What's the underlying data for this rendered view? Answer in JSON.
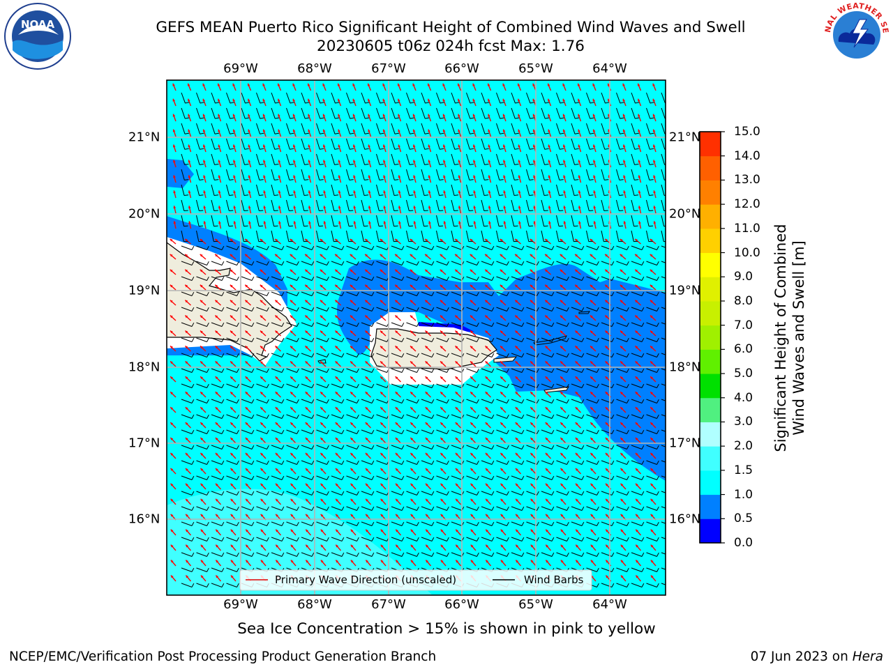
{
  "header": {
    "title_line1": "GEFS MEAN Puerto Rico Significant Height of Combined Wind Waves and Swell",
    "title_line2": "20230605 t06z 024h fcst   Max: 1.76"
  },
  "logos": {
    "noaa": {
      "icon": "noaa-logo-icon",
      "text": "NOAA"
    },
    "nws": {
      "icon": "nws-logo-icon",
      "text": "NATIONAL WEATHER SERVICE"
    }
  },
  "map": {
    "lon_labels": [
      "69°W",
      "68°W",
      "67°W",
      "66°W",
      "65°W",
      "64°W"
    ],
    "lat_labels": [
      "21°N",
      "20°N",
      "19°N",
      "18°N",
      "17°N",
      "16°N"
    ],
    "colors": {
      "ocean_base": "#00ffff",
      "band_0_5_1_0": "#0080ff",
      "band_0_0_0_5": "#0000ff",
      "band_1_5_2_0": "#40ffff",
      "land": "#efeddd",
      "wave_arrow": "#ff0000",
      "wind_barb": "#000000"
    }
  },
  "legend": {
    "primary_wave": "Primary Wave Direction (unscaled)",
    "wind_barbs": "Wind Barbs"
  },
  "colorbar": {
    "title_line1": "Significant Height of Combined",
    "title_line2": "Wind Waves and Swell [m]",
    "ticks": [
      "0.0",
      "0.5",
      "1.0",
      "1.5",
      "2.0",
      "3.0",
      "4.0",
      "5.0",
      "6.0",
      "7.0",
      "8.0",
      "9.0",
      "10.0",
      "11.0",
      "12.0",
      "13.0",
      "14.0",
      "15.0"
    ],
    "colors": [
      "#0000ff",
      "#0080ff",
      "#00ffff",
      "#40ffff",
      "#b0ffff",
      "#50f080",
      "#00e000",
      "#60f000",
      "#a0f000",
      "#c8f000",
      "#e0f000",
      "#ffff00",
      "#ffd000",
      "#ffb000",
      "#ff8000",
      "#ff6000",
      "#ff3000",
      "#ff0000"
    ]
  },
  "footer": {
    "sea_ice_note": "Sea Ice Concentration > 15% is shown in pink to yellow",
    "left": "NCEP/EMC/Verification Post Processing Product Generation Branch",
    "right_date": "07 Jun 2023 on ",
    "right_machine": "Hera"
  }
}
